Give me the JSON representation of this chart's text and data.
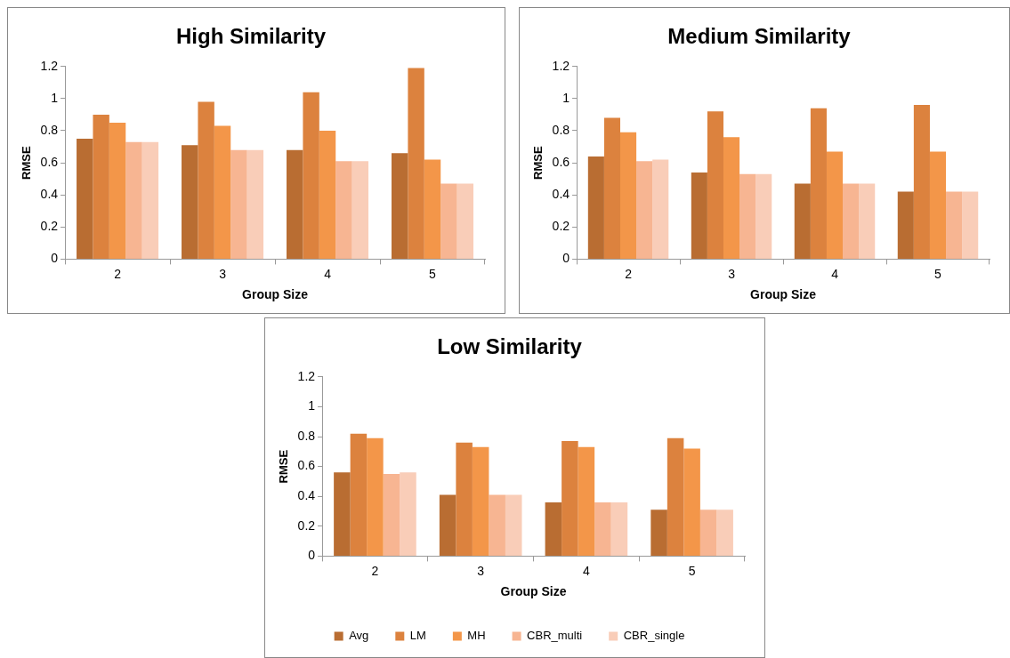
{
  "chart_data": [
    {
      "type": "bar",
      "title": "High Similarity",
      "xlabel": "Group Size",
      "ylabel": "RMSE",
      "categories": [
        "2",
        "3",
        "4",
        "5"
      ],
      "ylim": [
        0,
        1.2
      ],
      "yticks": [
        0,
        0.2,
        0.4,
        0.6,
        0.8,
        1,
        1.2
      ],
      "legend": false,
      "series": [
        {
          "color": "#b96d32",
          "values": [
            0.75,
            0.71,
            0.68,
            0.66
          ]
        },
        {
          "color": "#dc823e",
          "values": [
            0.9,
            0.98,
            1.04,
            1.19
          ]
        },
        {
          "color": "#f39649",
          "values": [
            0.85,
            0.83,
            0.8,
            0.62
          ]
        },
        {
          "color": "#f7b592",
          "values": [
            0.73,
            0.68,
            0.61,
            0.47
          ]
        },
        {
          "color": "#f9cdb8",
          "values": [
            0.73,
            0.68,
            0.61,
            0.47
          ]
        }
      ]
    },
    {
      "type": "bar",
      "title": "Medium Similarity",
      "xlabel": "Group Size",
      "ylabel": "RMSE",
      "categories": [
        "2",
        "3",
        "4",
        "5"
      ],
      "ylim": [
        0,
        1.2
      ],
      "yticks": [
        0,
        0.2,
        0.4,
        0.6,
        0.8,
        1,
        1.2
      ],
      "legend": false,
      "series": [
        {
          "color": "#b96d32",
          "values": [
            0.64,
            0.54,
            0.47,
            0.42
          ]
        },
        {
          "color": "#dc823e",
          "values": [
            0.88,
            0.92,
            0.94,
            0.96
          ]
        },
        {
          "color": "#f39649",
          "values": [
            0.79,
            0.76,
            0.67,
            0.67
          ]
        },
        {
          "color": "#f7b592",
          "values": [
            0.61,
            0.53,
            0.47,
            0.42
          ]
        },
        {
          "color": "#f9cdb8",
          "values": [
            0.62,
            0.53,
            0.47,
            0.42
          ]
        }
      ]
    },
    {
      "type": "bar",
      "title": "Low Similarity",
      "xlabel": "Group Size",
      "ylabel": "RMSE",
      "categories": [
        "2",
        "3",
        "4",
        "5"
      ],
      "ylim": [
        0,
        1.2
      ],
      "yticks": [
        0,
        0.2,
        0.4,
        0.6,
        0.8,
        1,
        1.2
      ],
      "legend": "bottom",
      "series": [
        {
          "name": "Avg",
          "color": "#b96d32",
          "values": [
            0.56,
            0.41,
            0.36,
            0.31
          ]
        },
        {
          "name": "LM",
          "color": "#dc823e",
          "values": [
            0.82,
            0.76,
            0.77,
            0.79
          ]
        },
        {
          "name": "MH",
          "color": "#f39649",
          "values": [
            0.79,
            0.73,
            0.73,
            0.72
          ]
        },
        {
          "name": "CBR_multi",
          "color": "#f7b592",
          "values": [
            0.55,
            0.41,
            0.36,
            0.31
          ]
        },
        {
          "name": "CBR_single",
          "color": "#f9cdb8",
          "values": [
            0.56,
            0.41,
            0.36,
            0.31
          ]
        }
      ]
    }
  ]
}
